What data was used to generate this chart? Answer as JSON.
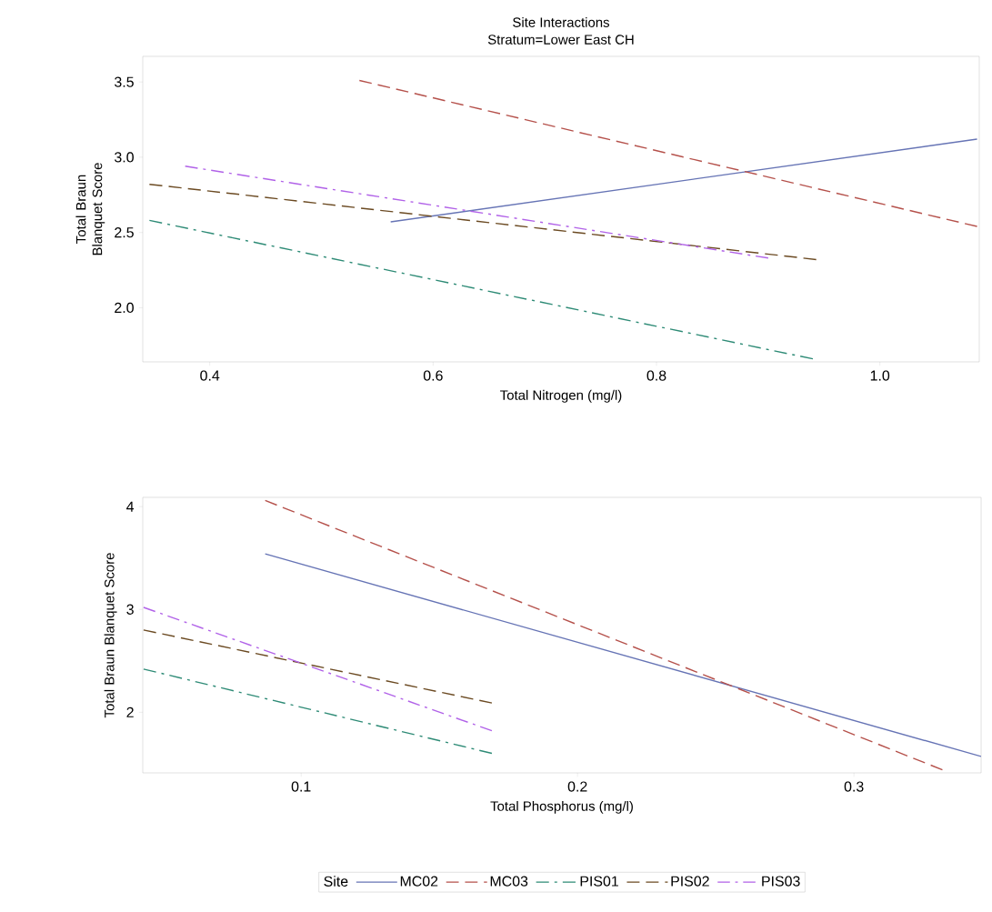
{
  "chart_data": [
    {
      "type": "line",
      "title": "Site Interactions",
      "subtitle": "Stratum=Lower East CH",
      "xlabel": "Total Nitrogen (mg/l)",
      "ylabel": "Total Braun Blanquet Score",
      "xlim": [
        0.34,
        1.089
      ],
      "ylim": [
        1.64,
        3.67
      ],
      "xticks": [
        {
          "value": 0.4,
          "label": "0.4"
        },
        {
          "value": 0.6,
          "label": "0.6"
        },
        {
          "value": 0.8,
          "label": "0.8"
        },
        {
          "value": 1.0,
          "label": "1.0"
        }
      ],
      "yticks": [
        {
          "value": 2.0,
          "label": "2.0"
        },
        {
          "value": 2.5,
          "label": "2.5"
        },
        {
          "value": 3.0,
          "label": "3.0"
        },
        {
          "value": 3.5,
          "label": "3.5"
        }
      ],
      "series": [
        {
          "color": "#6674b5",
          "line_style": "solid",
          "x": [
            0.562,
            1.087
          ],
          "values": [
            2.57,
            3.12
          ]
        },
        {
          "color": "#b5514b",
          "line_style": "dashed",
          "x": [
            0.534,
            1.087
          ],
          "values": [
            3.51,
            2.54
          ]
        },
        {
          "color": "#2e8b76",
          "line_style": "dashdot",
          "x": [
            0.346,
            0.94
          ],
          "values": [
            2.58,
            1.66
          ]
        },
        {
          "color": "#6b4a22",
          "line_style": "dashed",
          "x": [
            0.346,
            0.943
          ],
          "values": [
            2.82,
            2.32
          ]
        },
        {
          "color": "#b162e8",
          "line_style": "dashdot",
          "x": [
            0.378,
            0.9
          ],
          "values": [
            2.94,
            2.33
          ]
        }
      ]
    },
    {
      "type": "line",
      "xlabel": "Total Phosphorus (mg/l)",
      "ylabel": "Total Braun Blanquet Score",
      "legend": "bottom",
      "legend_title": "Site",
      "xlim": [
        0.0427,
        0.346
      ],
      "ylim": [
        1.41,
        4.09
      ],
      "xticks": [
        0.1,
        0.2,
        0.3
      ],
      "yticks": [
        2,
        3,
        4
      ],
      "series": [
        {
          "name": "MC02",
          "color": "#6674b5",
          "line_style": "solid",
          "x": [
            0.087,
            0.346
          ],
          "values": [
            3.54,
            1.57
          ]
        },
        {
          "name": "MC03",
          "color": "#b5514b",
          "line_style": "dashed",
          "x": [
            0.087,
            0.332
          ],
          "values": [
            4.06,
            1.44
          ]
        },
        {
          "name": "PIS01",
          "color": "#2e8b76",
          "line_style": "dashdot",
          "x": [
            0.043,
            0.169
          ],
          "values": [
            2.42,
            1.6
          ]
        },
        {
          "name": "PIS02",
          "color": "#6b4a22",
          "line_style": "dashed",
          "x": [
            0.043,
            0.169
          ],
          "values": [
            2.8,
            2.09
          ]
        },
        {
          "name": "PIS03",
          "color": "#b162e8",
          "line_style": "dashdot",
          "x": [
            0.043,
            0.169
          ],
          "values": [
            3.02,
            1.82
          ]
        }
      ]
    }
  ]
}
